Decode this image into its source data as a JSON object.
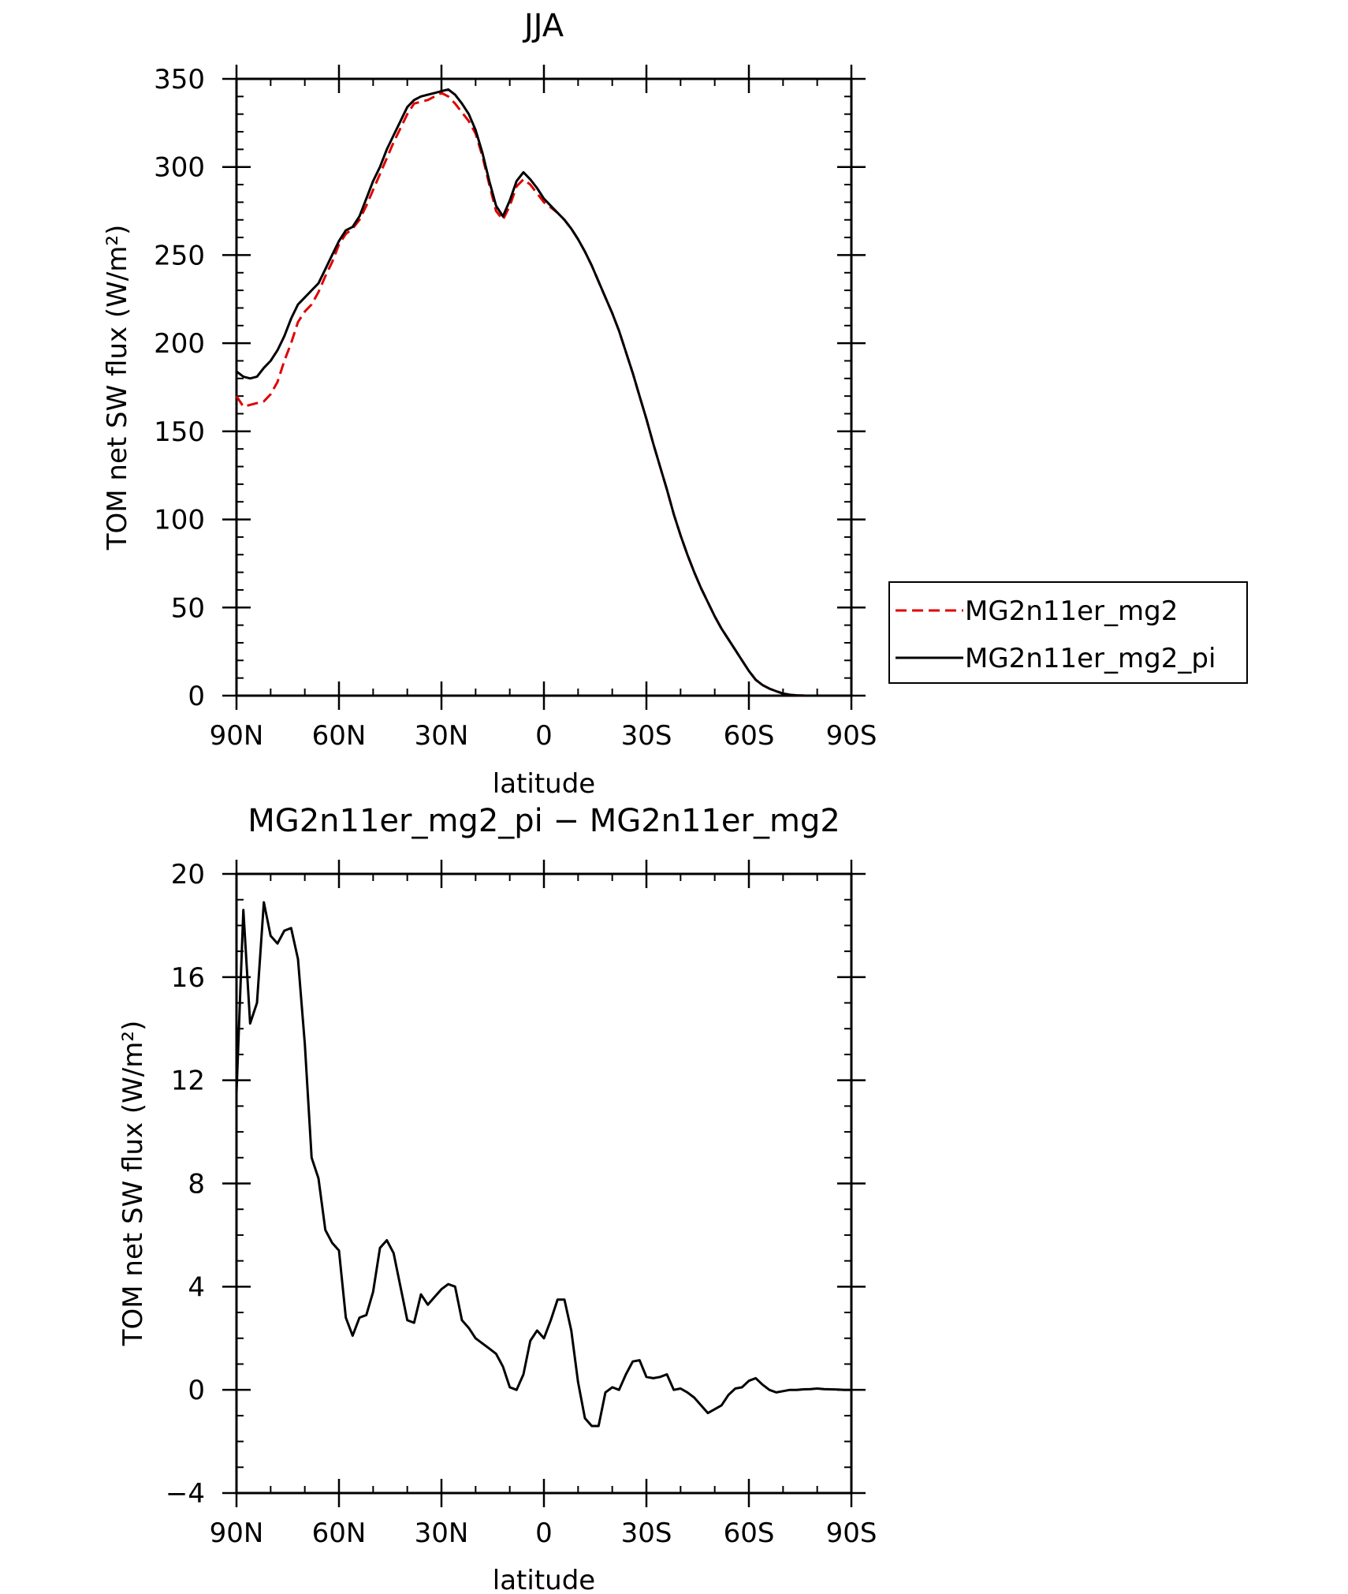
{
  "chart_data": [
    {
      "type": "line",
      "title": "JJA",
      "xlabel": "latitude",
      "ylabel": "TOM net SW flux (W/m²)",
      "xlim": [
        90,
        -90
      ],
      "ylim": [
        0,
        350
      ],
      "x_ticks": [
        90,
        60,
        30,
        0,
        -30,
        -60,
        -90
      ],
      "x_tick_labels": [
        "90N",
        "60N",
        "30N",
        "0",
        "30S",
        "60S",
        "90S"
      ],
      "y_ticks": [
        0,
        50,
        100,
        150,
        200,
        250,
        300,
        350
      ],
      "y_tick_labels": [
        "0",
        "50",
        "100",
        "150",
        "200",
        "250",
        "300",
        "350"
      ],
      "grid": false,
      "legend": {
        "placement": "right",
        "entries": [
          {
            "name": "MG2n11er_mg2",
            "color": "#e00000",
            "dash": "dashed"
          },
          {
            "name": "MG2n11er_mg2_pi",
            "color": "#000000",
            "dash": "solid"
          }
        ]
      },
      "series": [
        {
          "name": "MG2n11er_mg2",
          "color": "#e00000",
          "dash": "dashed",
          "x": [
            90,
            88,
            86,
            84,
            82,
            80,
            78,
            76,
            74,
            72,
            70,
            68,
            66,
            64,
            62,
            60,
            58,
            56,
            54,
            52,
            50,
            48,
            46,
            44,
            42,
            40,
            38,
            36,
            34,
            32,
            30,
            28,
            26,
            24,
            22,
            20,
            18,
            16,
            14,
            12,
            10,
            8,
            6,
            4,
            2,
            0,
            -2,
            -4,
            -6,
            -8,
            -10,
            -12,
            -14,
            -16,
            -18,
            -20,
            -22,
            -24,
            -26,
            -28,
            -30,
            -32,
            -34,
            -36,
            -38,
            -40,
            -42,
            -44,
            -46,
            -48,
            -50,
            -52,
            -54,
            -56,
            -58,
            -60,
            -62,
            -64,
            -66,
            -68,
            -70,
            -72,
            -74,
            -76,
            -78,
            -80,
            -82,
            -84,
            -86,
            -88,
            -90
          ],
          "y": [
            170,
            164,
            165,
            166,
            167,
            171,
            178,
            190,
            200,
            212,
            218,
            222,
            229,
            238,
            246,
            256,
            262,
            265,
            270,
            278,
            287,
            296,
            305,
            314,
            322,
            330,
            336,
            337,
            338,
            340,
            342,
            340,
            336,
            331,
            326,
            319,
            306,
            290,
            275,
            270,
            278,
            289,
            293,
            290,
            285,
            280,
            277,
            274,
            270,
            265,
            259,
            252,
            244,
            235,
            226,
            217,
            207,
            195,
            183,
            170,
            157,
            143,
            130,
            117,
            103,
            91,
            80,
            70,
            61,
            53,
            45,
            38,
            32,
            26,
            20,
            14,
            9,
            6,
            4,
            2.5,
            1.2,
            0.5,
            0.2,
            0.05,
            0,
            0,
            0,
            0,
            0,
            0,
            0
          ]
        },
        {
          "name": "MG2n11er_mg2_pi",
          "color": "#000000",
          "dash": "solid",
          "x": [
            90,
            88,
            86,
            84,
            82,
            80,
            78,
            76,
            74,
            72,
            70,
            68,
            66,
            64,
            62,
            60,
            58,
            56,
            54,
            52,
            50,
            48,
            46,
            44,
            42,
            40,
            38,
            36,
            34,
            32,
            30,
            28,
            26,
            24,
            22,
            20,
            18,
            16,
            14,
            12,
            10,
            8,
            6,
            4,
            2,
            0,
            -2,
            -4,
            -6,
            -8,
            -10,
            -12,
            -14,
            -16,
            -18,
            -20,
            -22,
            -24,
            -26,
            -28,
            -30,
            -32,
            -34,
            -36,
            -38,
            -40,
            -42,
            -44,
            -46,
            -48,
            -50,
            -52,
            -54,
            -56,
            -58,
            -60,
            -62,
            -64,
            -66,
            -68,
            -70,
            -72,
            -74,
            -76,
            -78,
            -80,
            -82,
            -84,
            -86,
            -88,
            -90
          ],
          "y": [
            184,
            181,
            180,
            181,
            186,
            190,
            196,
            204,
            214,
            222,
            226,
            230,
            234,
            242,
            250,
            258,
            264,
            266,
            272,
            282,
            292,
            300,
            310,
            318,
            326,
            334,
            338,
            340,
            341,
            342,
            343,
            344,
            341,
            336,
            330,
            321,
            308,
            292,
            278,
            272,
            281,
            292,
            297,
            293,
            288,
            282,
            278,
            274,
            270,
            265,
            259,
            252,
            244,
            235,
            226,
            217,
            207,
            195,
            183,
            170,
            157,
            143,
            130,
            117,
            103,
            91,
            80,
            70,
            61,
            53,
            45,
            38,
            32,
            26,
            20,
            14,
            9,
            6,
            4,
            2.5,
            1.2,
            0.5,
            0.2,
            0.05,
            0,
            0,
            0,
            0,
            0,
            0,
            0
          ]
        }
      ]
    },
    {
      "type": "line",
      "title": "MG2n11er_mg2_pi − MG2n11er_mg2",
      "xlabel": "latitude",
      "ylabel": "TOM net SW flux (W/m²)",
      "xlim": [
        90,
        -90
      ],
      "ylim": [
        -4,
        20
      ],
      "x_ticks": [
        90,
        60,
        30,
        0,
        -30,
        -60,
        -90
      ],
      "x_tick_labels": [
        "90N",
        "60N",
        "30N",
        "0",
        "30S",
        "60S",
        "90S"
      ],
      "y_ticks": [
        -4,
        0,
        4,
        8,
        12,
        16,
        20
      ],
      "y_tick_labels": [
        "−4",
        "0",
        "4",
        "8",
        "12",
        "16",
        "20"
      ],
      "grid": false,
      "series": [
        {
          "color": "#000000",
          "dash": "solid",
          "x": [
            90,
            88,
            86,
            84,
            82,
            80,
            78,
            76,
            74,
            72,
            70,
            68,
            66,
            64,
            62,
            60,
            58,
            56,
            54,
            52,
            50,
            48,
            46,
            44,
            42,
            40,
            38,
            36,
            34,
            32,
            30,
            28,
            26,
            24,
            22,
            20,
            18,
            16,
            14,
            12,
            10,
            8,
            6,
            4,
            2,
            0,
            -2,
            -4,
            -6,
            -8,
            -10,
            -12,
            -14,
            -16,
            -18,
            -20,
            -22,
            -24,
            -26,
            -28,
            -30,
            -32,
            -34,
            -36,
            -38,
            -40,
            -42,
            -44,
            -46,
            -48,
            -50,
            -52,
            -54,
            -56,
            -58,
            -60,
            -62,
            -64,
            -66,
            -68,
            -70,
            -72,
            -74,
            -76,
            -78,
            -80,
            -82,
            -84,
            -86,
            -88,
            -90
          ],
          "y": [
            11.5,
            18.6,
            14.2,
            15.0,
            18.9,
            17.6,
            17.3,
            17.8,
            17.9,
            16.7,
            13.4,
            9.0,
            8.2,
            6.2,
            5.7,
            5.4,
            2.8,
            2.1,
            2.8,
            2.9,
            3.8,
            5.5,
            5.8,
            5.3,
            4.0,
            2.7,
            2.6,
            3.7,
            3.3,
            3.6,
            3.9,
            4.1,
            4.0,
            2.7,
            2.4,
            2.0,
            1.8,
            1.6,
            1.4,
            0.9,
            0.1,
            0.0,
            0.6,
            1.9,
            2.3,
            2.0,
            2.7,
            3.5,
            3.5,
            2.3,
            0.3,
            -1.1,
            -1.4,
            -1.4,
            -0.1,
            0.1,
            0.0,
            0.6,
            1.1,
            1.15,
            0.5,
            0.45,
            0.5,
            0.6,
            0.0,
            0.05,
            -0.1,
            -0.3,
            -0.6,
            -0.9,
            -0.75,
            -0.6,
            -0.2,
            0.05,
            0.1,
            0.35,
            0.45,
            0.2,
            0.0,
            -0.1,
            -0.05,
            0.0,
            0.0,
            0.02,
            0.03,
            0.05,
            0.03,
            0.02,
            0.01,
            0.0,
            0.0
          ]
        }
      ]
    }
  ]
}
